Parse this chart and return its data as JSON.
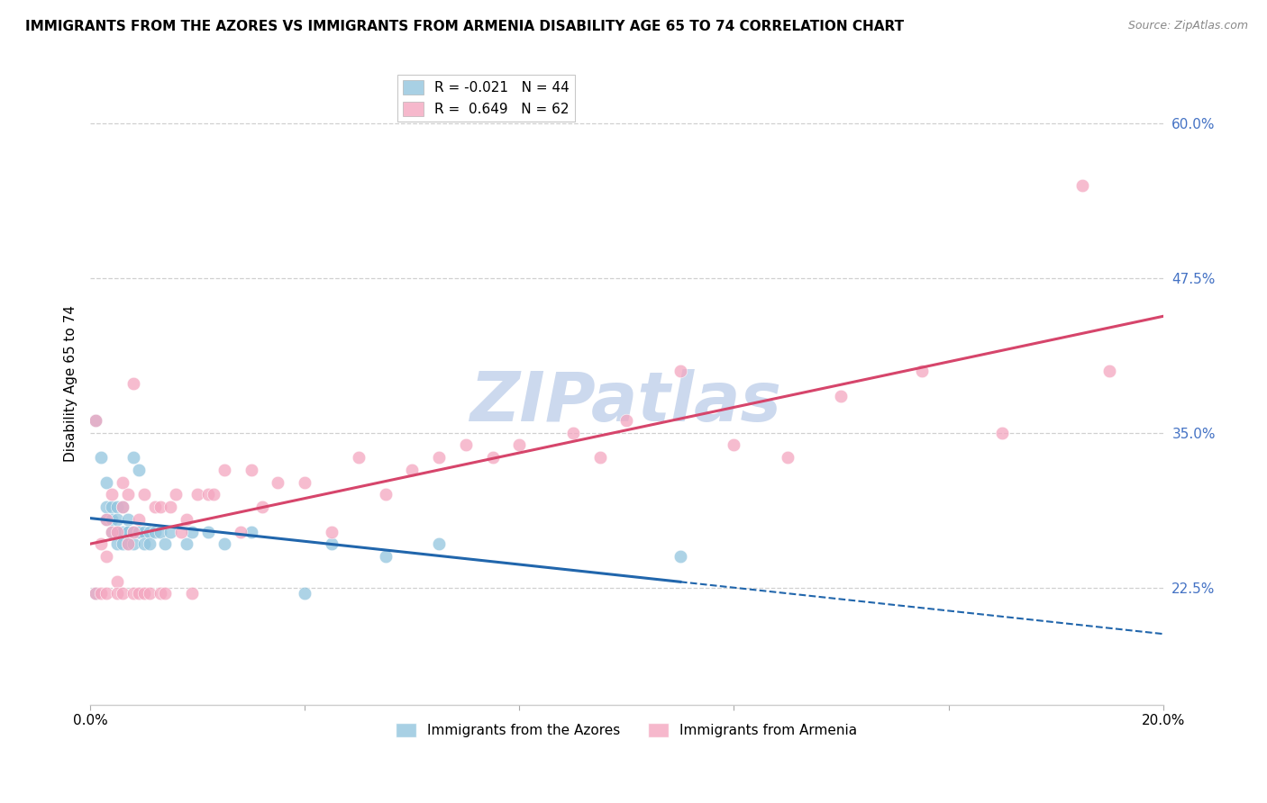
{
  "title": "IMMIGRANTS FROM THE AZORES VS IMMIGRANTS FROM ARMENIA DISABILITY AGE 65 TO 74 CORRELATION CHART",
  "source": "Source: ZipAtlas.com",
  "ylabel": "Disability Age 65 to 74",
  "x_min": 0.0,
  "x_max": 0.2,
  "y_min": 0.13,
  "y_max": 0.65,
  "x_ticks": [
    0.0,
    0.04,
    0.08,
    0.12,
    0.16,
    0.2
  ],
  "x_tick_labels": [
    "0.0%",
    "",
    "",
    "",
    "",
    "20.0%"
  ],
  "y_tick_labels_right": [
    "60.0%",
    "47.5%",
    "35.0%",
    "22.5%"
  ],
  "y_tick_positions_right": [
    0.6,
    0.475,
    0.35,
    0.225
  ],
  "watermark": "ZIPatlas",
  "azores": {
    "name": "Immigrants from the Azores",
    "color": "#92c5de",
    "R": -0.021,
    "N": 44,
    "trend_color": "#2166ac",
    "x": [
      0.001,
      0.002,
      0.003,
      0.003,
      0.003,
      0.004,
      0.004,
      0.004,
      0.005,
      0.005,
      0.005,
      0.005,
      0.006,
      0.006,
      0.006,
      0.007,
      0.007,
      0.007,
      0.007,
      0.008,
      0.008,
      0.008,
      0.009,
      0.009,
      0.009,
      0.01,
      0.01,
      0.011,
      0.011,
      0.012,
      0.013,
      0.014,
      0.015,
      0.018,
      0.019,
      0.022,
      0.025,
      0.03,
      0.04,
      0.045,
      0.055,
      0.065,
      0.11,
      0.001
    ],
    "y": [
      0.36,
      0.33,
      0.31,
      0.29,
      0.28,
      0.29,
      0.28,
      0.27,
      0.29,
      0.28,
      0.27,
      0.26,
      0.29,
      0.27,
      0.26,
      0.28,
      0.27,
      0.27,
      0.26,
      0.27,
      0.26,
      0.33,
      0.32,
      0.27,
      0.27,
      0.27,
      0.26,
      0.27,
      0.26,
      0.27,
      0.27,
      0.26,
      0.27,
      0.26,
      0.27,
      0.27,
      0.26,
      0.27,
      0.22,
      0.26,
      0.25,
      0.26,
      0.25,
      0.22
    ]
  },
  "armenia": {
    "name": "Immigrants from Armenia",
    "color": "#f4a6c0",
    "R": 0.649,
    "N": 62,
    "trend_color": "#d6456b",
    "x": [
      0.001,
      0.001,
      0.002,
      0.002,
      0.003,
      0.003,
      0.003,
      0.004,
      0.004,
      0.005,
      0.005,
      0.005,
      0.006,
      0.006,
      0.006,
      0.007,
      0.007,
      0.008,
      0.008,
      0.008,
      0.009,
      0.009,
      0.01,
      0.01,
      0.011,
      0.012,
      0.013,
      0.013,
      0.014,
      0.015,
      0.016,
      0.017,
      0.018,
      0.019,
      0.02,
      0.022,
      0.023,
      0.025,
      0.028,
      0.03,
      0.032,
      0.035,
      0.04,
      0.045,
      0.05,
      0.055,
      0.06,
      0.065,
      0.07,
      0.075,
      0.08,
      0.09,
      0.095,
      0.1,
      0.11,
      0.12,
      0.13,
      0.14,
      0.155,
      0.17,
      0.185,
      0.19
    ],
    "y": [
      0.36,
      0.22,
      0.26,
      0.22,
      0.28,
      0.25,
      0.22,
      0.3,
      0.27,
      0.27,
      0.23,
      0.22,
      0.31,
      0.29,
      0.22,
      0.3,
      0.26,
      0.39,
      0.27,
      0.22,
      0.28,
      0.22,
      0.3,
      0.22,
      0.22,
      0.29,
      0.29,
      0.22,
      0.22,
      0.29,
      0.3,
      0.27,
      0.28,
      0.22,
      0.3,
      0.3,
      0.3,
      0.32,
      0.27,
      0.32,
      0.29,
      0.31,
      0.31,
      0.27,
      0.33,
      0.3,
      0.32,
      0.33,
      0.34,
      0.33,
      0.34,
      0.35,
      0.33,
      0.36,
      0.4,
      0.34,
      0.33,
      0.38,
      0.4,
      0.35,
      0.55,
      0.4
    ]
  },
  "bg_color": "#ffffff",
  "grid_color": "#d0d0d0",
  "axis_color": "#cccccc",
  "title_fontsize": 11,
  "label_fontsize": 11,
  "tick_fontsize": 11,
  "right_tick_color": "#4472c4",
  "watermark_color": "#ccd9ee",
  "watermark_fontsize": 55,
  "legend_items": [
    {
      "label": "R = -0.021   N = 44",
      "color": "#92c5de"
    },
    {
      "label": "R =  0.649   N = 62",
      "color": "#f4a6c0"
    }
  ]
}
